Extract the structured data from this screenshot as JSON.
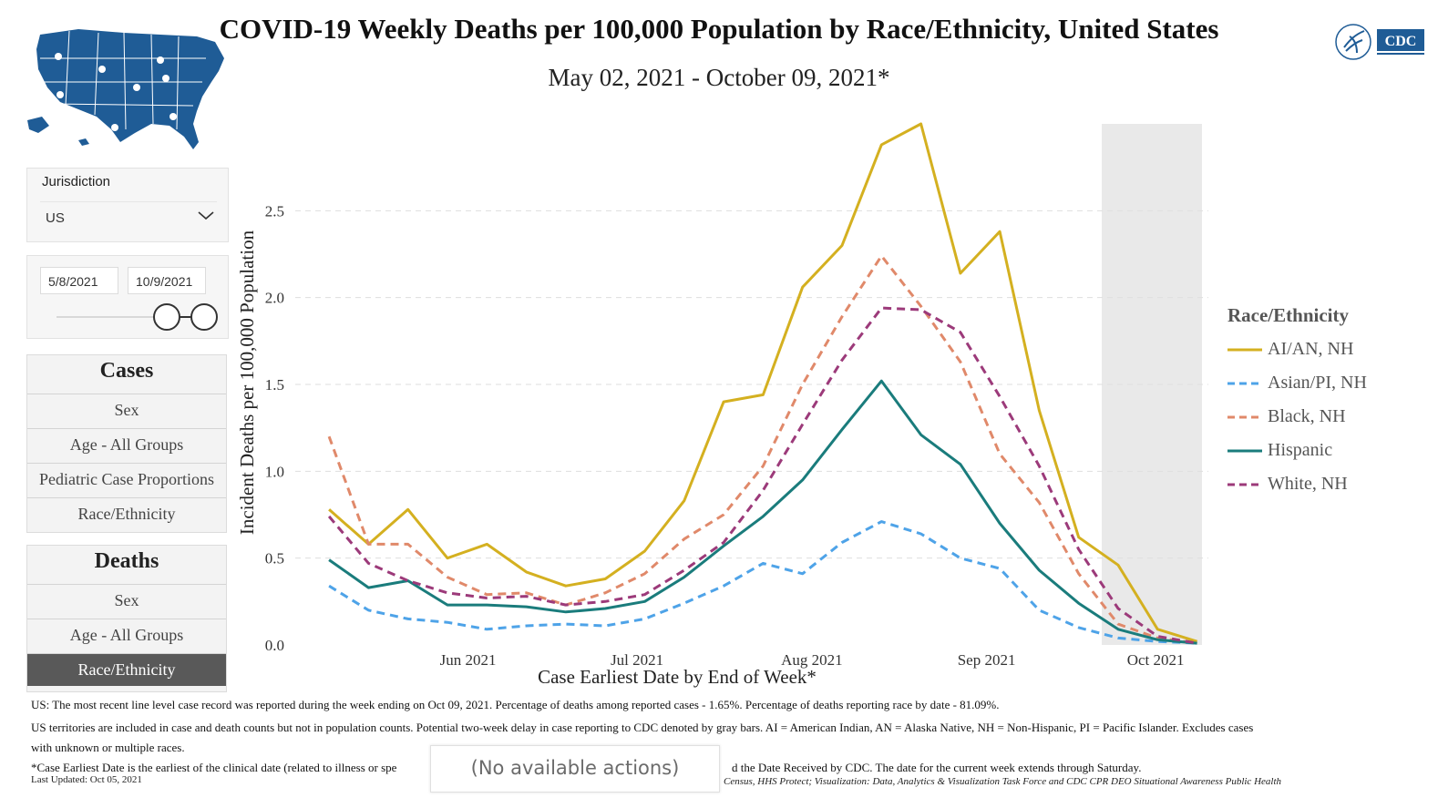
{
  "header": {
    "title": "COVID-19 Weekly Deaths per 100,000 Population by Race/Ethnicity, United States",
    "subtitle": "May 02, 2021 - October 09, 2021*"
  },
  "filters": {
    "jurisdiction_label": "Jurisdiction",
    "jurisdiction_value": "US",
    "date_start": "5/8/2021",
    "date_end": "10/9/2021"
  },
  "nav": {
    "cases": {
      "heading": "Cases",
      "items": [
        "Sex",
        "Age - All Groups",
        "Pediatric Case Proportions",
        "Race/Ethnicity"
      ]
    },
    "deaths": {
      "heading": "Deaths",
      "items": [
        "Sex",
        "Age - All Groups",
        "Race/Ethnicity"
      ],
      "active": "Race/Ethnicity"
    }
  },
  "chart_data": {
    "type": "line",
    "title": "",
    "xlabel": "Case Earliest Date by End of Week*",
    "ylabel": "Incident Deaths per 100,000 Population",
    "ylim": [
      0,
      3.0
    ],
    "yticks": [
      "0.0",
      "0.5",
      "1.0",
      "1.5",
      "2.0",
      "2.5"
    ],
    "x": [
      "2021-05-08",
      "2021-05-15",
      "2021-05-22",
      "2021-05-29",
      "2021-06-05",
      "2021-06-12",
      "2021-06-19",
      "2021-06-26",
      "2021-07-03",
      "2021-07-10",
      "2021-07-17",
      "2021-07-24",
      "2021-07-31",
      "2021-08-07",
      "2021-08-14",
      "2021-08-21",
      "2021-08-28",
      "2021-09-04",
      "2021-09-11",
      "2021-09-18",
      "2021-09-25",
      "2021-10-02",
      "2021-10-09"
    ],
    "xticks": [
      {
        "label": "Jun 2021",
        "date": "2021-06-01"
      },
      {
        "label": "Jul 2021",
        "date": "2021-07-01"
      },
      {
        "label": "Aug 2021",
        "date": "2021-08-01"
      },
      {
        "label": "Sep 2021",
        "date": "2021-09-01"
      },
      {
        "label": "Oct 2021",
        "date": "2021-10-01"
      }
    ],
    "gray_band_start": "2021-09-25",
    "grid": true,
    "legend_title": "Race/Ethnicity",
    "legend_position": "right",
    "series": [
      {
        "name": "AI/AN, NH",
        "color": "#d4b020",
        "dash": "solid",
        "values": [
          0.78,
          0.58,
          0.78,
          0.5,
          0.58,
          0.42,
          0.34,
          0.38,
          0.54,
          0.83,
          1.4,
          1.44,
          2.06,
          2.3,
          2.88,
          3.0,
          2.14,
          2.38,
          1.35,
          0.62,
          0.46,
          0.09,
          0.02
        ]
      },
      {
        "name": "Asian/PI, NH",
        "color": "#4ea3e8",
        "dash": "dashed",
        "values": [
          0.34,
          0.2,
          0.15,
          0.13,
          0.09,
          0.11,
          0.12,
          0.11,
          0.15,
          0.24,
          0.34,
          0.47,
          0.41,
          0.59,
          0.71,
          0.64,
          0.5,
          0.44,
          0.2,
          0.1,
          0.04,
          0.02,
          0.01
        ]
      },
      {
        "name": "Black, NH",
        "color": "#e0896a",
        "dash": "dashed",
        "values": [
          1.2,
          0.58,
          0.58,
          0.39,
          0.29,
          0.3,
          0.23,
          0.3,
          0.41,
          0.61,
          0.75,
          1.03,
          1.5,
          1.89,
          2.24,
          1.95,
          1.63,
          1.1,
          0.82,
          0.41,
          0.12,
          0.04,
          0.01
        ]
      },
      {
        "name": "Hispanic",
        "color": "#1a7c7c",
        "dash": "solid",
        "values": [
          0.49,
          0.33,
          0.37,
          0.23,
          0.23,
          0.22,
          0.19,
          0.21,
          0.25,
          0.39,
          0.57,
          0.74,
          0.95,
          1.24,
          1.52,
          1.21,
          1.04,
          0.7,
          0.43,
          0.24,
          0.09,
          0.03,
          0.01
        ]
      },
      {
        "name": "White, NH",
        "color": "#9c3a7a",
        "dash": "dashed",
        "values": [
          0.74,
          0.47,
          0.37,
          0.3,
          0.27,
          0.28,
          0.23,
          0.25,
          0.29,
          0.43,
          0.59,
          0.89,
          1.27,
          1.64,
          1.94,
          1.93,
          1.8,
          1.43,
          1.03,
          0.55,
          0.21,
          0.05,
          0.01
        ]
      }
    ]
  },
  "footnotes": {
    "line1": "US: The most recent line level case record was reported during the week ending on Oct 09, 2021. Percentage of deaths among reported cases - 1.65%. Percentage of deaths reporting race by date - 81.09%.",
    "line2": "US territories are included in case and death counts but not in population counts. Potential two-week delay in case reporting to CDC denoted by gray bars. AI = American Indian, AN = Alaska Native, NH = Non-Hispanic, PI = Pacific Islander. Excludes cases",
    "line3": "with unknown or multiple races.",
    "line4a": "*Case Earliest Date is the earliest of the clinical date (related to illness or spe",
    "line4b": "d the Date Received by CDC. The date for the current week extends through Saturday.",
    "last_updated": "Last Updated: Oct 05, 2021",
    "source": "Census, HHS Protect; Visualization: Data, Analytics & Visualization Task Force and CDC CPR DEO Situational Awareness Public Health"
  },
  "tooltip": "(No available actions)"
}
